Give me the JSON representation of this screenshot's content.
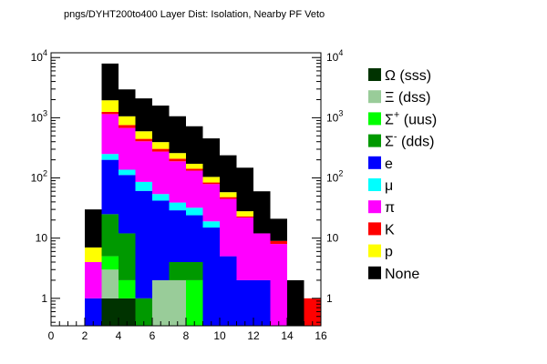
{
  "chart_data": {
    "type": "bar",
    "title": "pngs/DYHT200to400 Layer Dist: Isolation, Nearby PF Veto",
    "xlabel": "",
    "ylabel": "",
    "x_ticks": [
      "0",
      "2",
      "4",
      "6",
      "8",
      "10",
      "12",
      "14",
      "16"
    ],
    "xlim": [
      0,
      16
    ],
    "y_scale": "log",
    "ylim": [
      0.35,
      12000
    ],
    "y_tick_labels": [
      "1",
      "10",
      "10²",
      "10³",
      "10⁴"
    ],
    "y_tick_values": [
      1,
      10,
      100,
      1000,
      10000
    ],
    "legend_position": "right",
    "bin_edges": [
      2,
      3,
      4,
      5,
      6,
      7,
      8,
      9,
      10,
      11,
      12,
      13,
      14,
      15,
      16
    ],
    "stack_order": [
      "Ω (sss)",
      "Ξ (dss)",
      "Σ⁺ (uus)",
      "Σ⁻ (dds)",
      "e",
      "μ",
      "π",
      "K",
      "p",
      "None"
    ],
    "series": [
      {
        "name": "Ω (sss)",
        "label_main": "Ω (sss)",
        "label_sup": "",
        "label_rest": "",
        "color": "#003300",
        "values": [
          0,
          1,
          1,
          0,
          0,
          0,
          0,
          0,
          0,
          0,
          0,
          0,
          0,
          0
        ]
      },
      {
        "name": "Ξ (dss)",
        "label_main": "Ξ (dss)",
        "label_sup": "",
        "label_rest": "",
        "color": "#99cc99",
        "values": [
          0,
          2,
          0,
          0,
          2,
          2,
          0,
          0,
          0,
          0,
          0,
          0,
          0,
          0
        ]
      },
      {
        "name": "Σ⁺ (uus)",
        "label_main": "Σ",
        "label_sup": "+",
        "label_rest": " (uus)",
        "color": "#00ff00",
        "values": [
          0,
          2,
          1,
          0,
          0,
          0,
          2,
          0,
          0,
          0,
          0,
          0,
          0,
          0
        ]
      },
      {
        "name": "Σ⁻ (dds)",
        "label_main": "Σ",
        "label_sup": "-",
        "label_rest": " (dds)",
        "color": "#009900",
        "values": [
          0,
          20,
          10,
          1,
          0,
          2,
          2,
          0,
          0,
          0,
          0,
          0,
          0,
          0
        ]
      },
      {
        "name": "e",
        "label_main": "e",
        "label_sup": "",
        "label_rest": "",
        "color": "#0000ff",
        "values": [
          1,
          175,
          100,
          60,
          40,
          25,
          20,
          15,
          5,
          2,
          2,
          0,
          0,
          0
        ]
      },
      {
        "name": "μ",
        "label_main": "μ",
        "label_sup": "",
        "label_rest": "",
        "color": "#00ffff",
        "values": [
          0,
          50,
          25,
          25,
          12,
          10,
          8,
          4,
          0,
          0,
          0,
          0,
          0,
          0
        ]
      },
      {
        "name": "π",
        "label_main": "π",
        "label_sup": "",
        "label_rest": "",
        "color": "#ff00ff",
        "values": [
          3,
          900,
          540,
          320,
          220,
          150,
          100,
          60,
          40,
          20,
          10,
          8,
          0,
          0
        ]
      },
      {
        "name": "K",
        "label_main": "K",
        "label_sup": "",
        "label_rest": "",
        "color": "#ff0000",
        "values": [
          0,
          100,
          80,
          40,
          30,
          20,
          10,
          5,
          3,
          1,
          0,
          1,
          0,
          1
        ]
      },
      {
        "name": "p",
        "label_main": "p",
        "label_sup": "",
        "label_rest": "",
        "color": "#ffff00",
        "values": [
          3,
          700,
          300,
          150,
          90,
          50,
          30,
          20,
          10,
          5,
          0,
          0,
          0,
          0
        ]
      },
      {
        "name": "None",
        "label_main": "None",
        "label_sup": "",
        "label_rest": "",
        "color": "#000000",
        "values": [
          23,
          6000,
          1900,
          1500,
          1200,
          800,
          550,
          350,
          180,
          120,
          48,
          12,
          2,
          0
        ]
      }
    ]
  }
}
